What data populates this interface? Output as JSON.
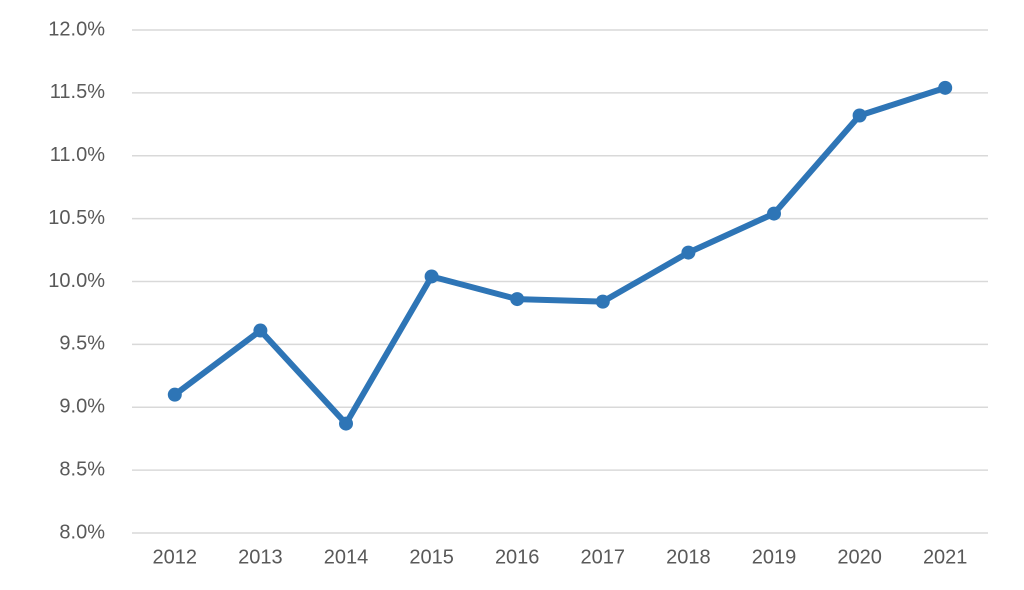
{
  "chart_data": {
    "type": "line",
    "categories": [
      "2012",
      "2013",
      "2014",
      "2015",
      "2016",
      "2017",
      "2018",
      "2019",
      "2020",
      "2021"
    ],
    "values": [
      9.1,
      9.61,
      8.87,
      10.04,
      9.86,
      9.84,
      10.23,
      10.54,
      11.32,
      11.54
    ],
    "color": "#2e75b6",
    "ylim": [
      8.0,
      12.0
    ],
    "yticks": [
      {
        "value": 8.0,
        "label": "8.0%"
      },
      {
        "value": 8.5,
        "label": "8.5%"
      },
      {
        "value": 9.0,
        "label": "9.0%"
      },
      {
        "value": 9.5,
        "label": "9.5%"
      },
      {
        "value": 10.0,
        "label": "10.0%"
      },
      {
        "value": 10.5,
        "label": "10.5%"
      },
      {
        "value": 11.0,
        "label": "11.0%"
      },
      {
        "value": 11.5,
        "label": "11.5%"
      },
      {
        "value": 12.0,
        "label": "12.0%"
      }
    ],
    "grid": true
  }
}
